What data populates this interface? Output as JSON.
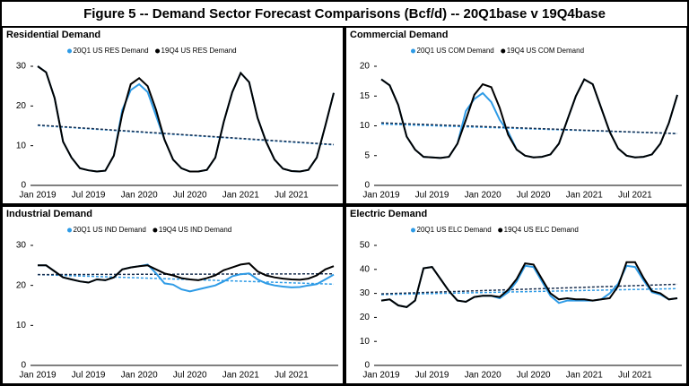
{
  "title": "Figure 5 -- Demand Sector Forecast Comparisons (Bcf/d) -- 20Q1base v 19Q4base",
  "chart_data": [
    {
      "type": "line",
      "title": "Residential Demand",
      "categories": [
        "Jan 2019",
        null,
        null,
        null,
        null,
        null,
        "Jul 2019",
        null,
        null,
        null,
        null,
        null,
        "Jan 2020",
        null,
        null,
        null,
        null,
        null,
        "Jul 2020",
        null,
        null,
        null,
        null,
        null,
        "Jan 2021",
        null,
        null,
        null,
        null,
        null,
        "Jul 2021",
        null,
        null,
        null,
        null,
        null
      ],
      "ylim": [
        0,
        30
      ],
      "yticks": [
        0,
        10,
        20,
        30
      ],
      "series": [
        {
          "name": "20Q1 US RES Demand",
          "color": "#2e9be6",
          "values": [
            30,
            28.5,
            22,
            11,
            7,
            4.3,
            3.8,
            3.5,
            3.7,
            7.5,
            19,
            24,
            25.5,
            23.5,
            17.5,
            11.5,
            6.5,
            4.3,
            3.5,
            3.5,
            3.9,
            7,
            16,
            23.5,
            28.3,
            26,
            17,
            11,
            6.5,
            4.2,
            3.6,
            3.5,
            3.9,
            7,
            15,
            23.3
          ]
        },
        {
          "name": "19Q4 US RES Demand",
          "color": "#000000",
          "values": [
            30,
            28.5,
            22,
            11,
            7,
            4.3,
            3.8,
            3.5,
            3.7,
            7.5,
            18,
            25.5,
            27,
            25,
            19,
            11.5,
            6.5,
            4.3,
            3.5,
            3.5,
            3.9,
            7,
            16,
            23.5,
            28.3,
            26,
            17,
            11,
            6.5,
            4.2,
            3.6,
            3.5,
            3.9,
            7,
            15,
            23.3
          ]
        }
      ],
      "trendlines": [
        {
          "color": "#2e9be6",
          "values": [
            15.1,
            10.2
          ]
        },
        {
          "color": "#1a3050",
          "values": [
            15.2,
            10.3
          ]
        }
      ]
    },
    {
      "type": "line",
      "title": "Commercial Demand",
      "categories": [
        "Jan 2019",
        null,
        null,
        null,
        null,
        null,
        "Jul 2019",
        null,
        null,
        null,
        null,
        null,
        "Jan 2020",
        null,
        null,
        null,
        null,
        null,
        "Jul 2020",
        null,
        null,
        null,
        null,
        null,
        "Jan 2021",
        null,
        null,
        null,
        null,
        null,
        "Jul 2021",
        null,
        null,
        null,
        null,
        null
      ],
      "ylim": [
        0,
        20
      ],
      "yticks": [
        0,
        5,
        10,
        15,
        20
      ],
      "series": [
        {
          "name": "20Q1 US COM Demand",
          "color": "#2e9be6",
          "values": [
            17.8,
            16.8,
            13.5,
            8.2,
            6,
            4.8,
            4.7,
            4.6,
            4.8,
            7,
            12.5,
            14.5,
            15.5,
            14,
            11,
            9,
            6,
            5,
            4.7,
            4.8,
            5.2,
            7,
            11,
            15,
            17.8,
            17,
            13,
            9,
            6.2,
            5,
            4.7,
            4.8,
            5.2,
            7,
            10.5,
            15.2
          ]
        },
        {
          "name": "19Q4 US COM Demand",
          "color": "#000000",
          "values": [
            17.8,
            16.8,
            13.5,
            8.2,
            6,
            4.8,
            4.7,
            4.6,
            4.8,
            7,
            11,
            15.2,
            17,
            16.5,
            13,
            8.5,
            6,
            5,
            4.7,
            4.8,
            5.2,
            7,
            11,
            15,
            17.8,
            17,
            13,
            9,
            6.2,
            5,
            4.7,
            4.8,
            5.2,
            7,
            10.5,
            15.2
          ]
        }
      ],
      "trendlines": [
        {
          "color": "#2e9be6",
          "values": [
            10.3,
            8.7
          ]
        },
        {
          "color": "#1a3050",
          "values": [
            10.5,
            8.7
          ]
        }
      ]
    },
    {
      "type": "line",
      "title": "Industrial Demand",
      "categories": [
        "Jan 2019",
        null,
        null,
        null,
        null,
        null,
        "Jul 2019",
        null,
        null,
        null,
        null,
        null,
        "Jan 2020",
        null,
        null,
        null,
        null,
        null,
        "Jul 2020",
        null,
        null,
        null,
        null,
        null,
        "Jan 2021",
        null,
        null,
        null,
        null,
        null,
        "Jul 2021",
        null,
        null,
        null,
        null,
        null
      ],
      "ylim": [
        0,
        30
      ],
      "yticks": [
        0,
        10,
        20,
        30
      ],
      "series": [
        {
          "name": "20Q1 US IND Demand",
          "color": "#2e9be6",
          "values": [
            25,
            25,
            23.5,
            22,
            21.5,
            21,
            20.7,
            21.5,
            21.3,
            22,
            24,
            24.5,
            24.8,
            25.2,
            23,
            20.5,
            20.2,
            19,
            18.5,
            19,
            19.5,
            20,
            21,
            22.3,
            22.8,
            23,
            21.5,
            20.5,
            20,
            19.7,
            19.5,
            19.6,
            20,
            20.3,
            21.5,
            22.7
          ]
        },
        {
          "name": "19Q4 US IND Demand",
          "color": "#000000",
          "values": [
            25,
            25,
            23.5,
            22,
            21.5,
            21,
            20.7,
            21.5,
            21.3,
            22,
            24,
            24.5,
            24.8,
            25,
            24,
            23,
            22.5,
            21.8,
            21.5,
            21.3,
            21.8,
            22.5,
            23.8,
            24.5,
            25.2,
            25.5,
            23.5,
            22.5,
            22,
            21.7,
            21.5,
            21.4,
            21.7,
            22.5,
            24,
            24.8
          ]
        }
      ],
      "trendlines": [
        {
          "color": "#2e9be6",
          "values": [
            22.7,
            20.3
          ]
        },
        {
          "color": "#1a3050",
          "values": [
            22.7,
            22.9
          ]
        }
      ]
    },
    {
      "type": "line",
      "title": "Electric Demand",
      "categories": [
        "Jan 2019",
        null,
        null,
        null,
        null,
        null,
        "Jul 2019",
        null,
        null,
        null,
        null,
        null,
        "Jan 2020",
        null,
        null,
        null,
        null,
        null,
        "Jul 2020",
        null,
        null,
        null,
        null,
        null,
        "Jan 2021",
        null,
        null,
        null,
        null,
        null,
        "Jul 2021",
        null,
        null,
        null,
        null,
        null
      ],
      "ylim": [
        0,
        50
      ],
      "yticks": [
        0,
        10,
        20,
        30,
        40,
        50
      ],
      "series": [
        {
          "name": "20Q1 US ELC Demand",
          "color": "#2e9be6",
          "values": [
            27,
            27.5,
            25,
            24.3,
            27,
            40.5,
            41,
            36,
            31,
            27,
            26.5,
            28.5,
            29,
            29,
            28,
            30.5,
            35,
            41.5,
            41,
            35,
            29,
            26,
            27,
            27,
            27,
            27,
            27.5,
            30,
            34,
            41.5,
            41,
            35.5,
            30.5,
            29.5,
            27.5,
            28
          ]
        },
        {
          "name": "19Q4 US ELC Demand",
          "color": "#000000",
          "values": [
            27,
            27.5,
            25,
            24.3,
            27,
            40.5,
            41,
            36,
            31,
            27,
            26.5,
            28.5,
            29,
            29,
            28.5,
            31.5,
            36,
            42.5,
            42,
            36,
            30,
            27.5,
            28,
            27.5,
            27.5,
            27,
            27.5,
            28,
            33,
            43,
            43,
            36.5,
            31,
            30,
            27.5,
            28
          ]
        }
      ],
      "trendlines": [
        {
          "color": "#2e9be6",
          "values": [
            29.5,
            32
          ]
        },
        {
          "color": "#1a3050",
          "values": [
            29.8,
            33.8
          ]
        }
      ]
    }
  ]
}
